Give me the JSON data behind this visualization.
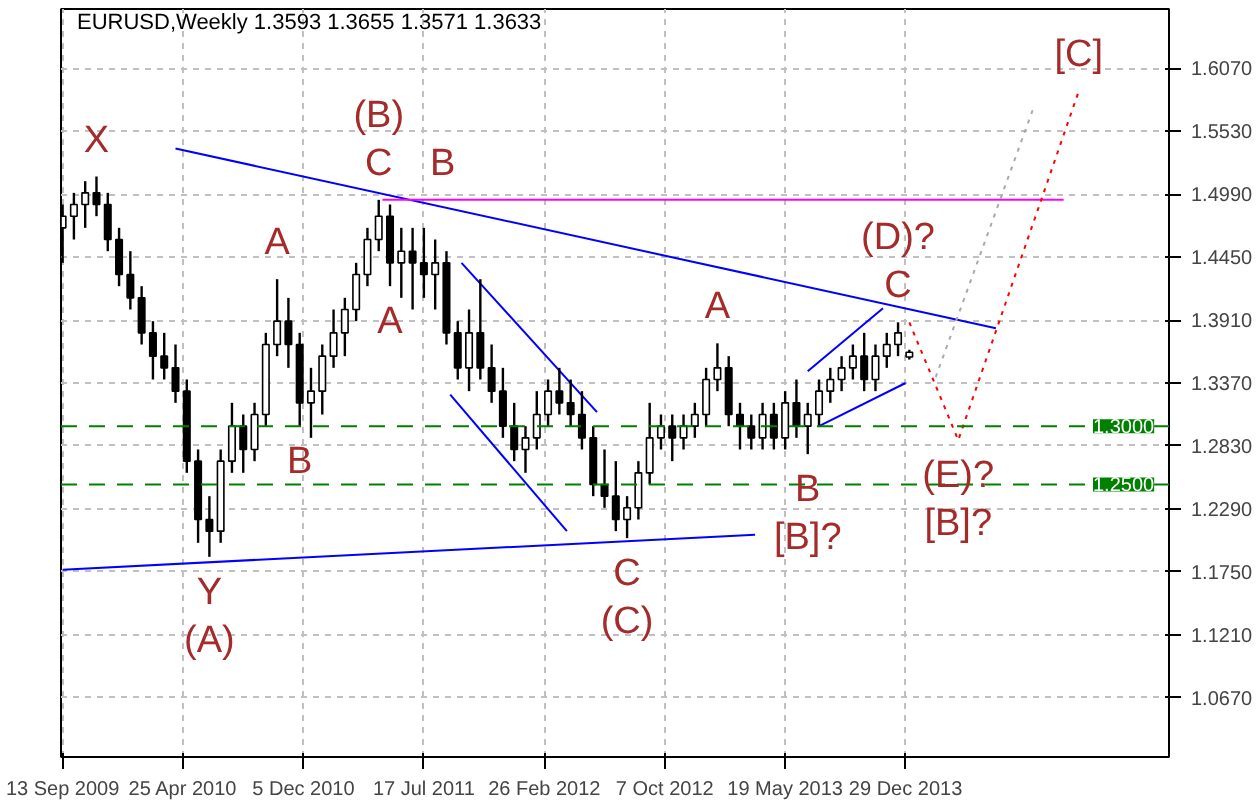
{
  "chart_data": {
    "type": "candlestick",
    "title": "EURUSD,Weekly  1.3593 1.3655 1.3571 1.3633",
    "color": "#000000",
    "x": [
      "2009-09-13",
      "2009-10-04",
      "2009-10-25",
      "2009-11-15",
      "2009-12-06",
      "2009-12-27",
      "2010-01-17",
      "2010-02-07",
      "2010-02-28",
      "2010-03-21",
      "2010-04-11",
      "2010-05-02",
      "2010-05-23",
      "2010-06-13",
      "2010-07-04",
      "2010-07-25",
      "2010-08-15",
      "2010-09-05",
      "2010-09-26",
      "2010-10-17",
      "2010-11-07",
      "2010-11-28",
      "2010-12-19",
      "2011-01-09",
      "2011-01-30",
      "2011-02-20",
      "2011-03-13",
      "2011-04-03",
      "2011-04-24",
      "2011-05-15",
      "2011-06-05",
      "2011-06-26",
      "2011-07-17",
      "2011-08-07",
      "2011-08-28",
      "2011-09-18",
      "2011-10-09",
      "2011-10-30",
      "2011-11-20",
      "2011-12-11",
      "2012-01-01",
      "2012-01-22",
      "2012-02-12",
      "2012-03-04",
      "2012-03-25",
      "2012-04-15",
      "2012-05-06",
      "2012-05-27",
      "2012-06-17",
      "2012-07-08",
      "2012-07-29",
      "2012-08-19",
      "2012-09-09",
      "2012-09-30",
      "2012-10-21",
      "2012-11-11",
      "2012-12-02",
      "2012-12-23",
      "2013-01-13",
      "2013-02-03",
      "2013-02-24",
      "2013-03-17",
      "2013-04-07",
      "2013-04-28",
      "2013-05-19",
      "2013-06-09",
      "2013-06-30",
      "2013-07-21",
      "2013-08-11",
      "2013-09-01",
      "2013-09-22",
      "2013-10-13",
      "2013-11-03",
      "2013-11-24",
      "2013-12-15",
      "2014-01-05"
    ],
    "ohlc": [
      [
        1.47,
        1.49,
        1.44,
        1.48
      ],
      [
        1.48,
        1.5,
        1.46,
        1.49
      ],
      [
        1.49,
        1.51,
        1.47,
        1.5
      ],
      [
        1.5,
        1.514,
        1.48,
        1.49
      ],
      [
        1.49,
        1.5,
        1.45,
        1.46
      ],
      [
        1.46,
        1.47,
        1.42,
        1.43
      ],
      [
        1.43,
        1.45,
        1.4,
        1.41
      ],
      [
        1.41,
        1.42,
        1.37,
        1.38
      ],
      [
        1.38,
        1.39,
        1.34,
        1.36
      ],
      [
        1.36,
        1.38,
        1.34,
        1.35
      ],
      [
        1.35,
        1.37,
        1.32,
        1.33
      ],
      [
        1.33,
        1.34,
        1.26,
        1.27
      ],
      [
        1.27,
        1.28,
        1.2,
        1.22
      ],
      [
        1.22,
        1.24,
        1.188,
        1.21
      ],
      [
        1.21,
        1.28,
        1.2,
        1.27
      ],
      [
        1.27,
        1.32,
        1.26,
        1.3
      ],
      [
        1.3,
        1.31,
        1.26,
        1.28
      ],
      [
        1.28,
        1.32,
        1.27,
        1.31
      ],
      [
        1.31,
        1.38,
        1.3,
        1.37
      ],
      [
        1.37,
        1.426,
        1.36,
        1.39
      ],
      [
        1.39,
        1.41,
        1.35,
        1.37
      ],
      [
        1.37,
        1.38,
        1.3,
        1.32
      ],
      [
        1.32,
        1.35,
        1.29,
        1.33
      ],
      [
        1.33,
        1.37,
        1.31,
        1.36
      ],
      [
        1.36,
        1.4,
        1.35,
        1.38
      ],
      [
        1.38,
        1.41,
        1.36,
        1.4
      ],
      [
        1.4,
        1.44,
        1.39,
        1.43
      ],
      [
        1.43,
        1.47,
        1.42,
        1.46
      ],
      [
        1.46,
        1.494,
        1.45,
        1.48
      ],
      [
        1.48,
        1.49,
        1.42,
        1.44
      ],
      [
        1.44,
        1.47,
        1.41,
        1.45
      ],
      [
        1.45,
        1.47,
        1.4,
        1.44
      ],
      [
        1.44,
        1.47,
        1.41,
        1.43
      ],
      [
        1.43,
        1.46,
        1.4,
        1.44
      ],
      [
        1.44,
        1.45,
        1.37,
        1.38
      ],
      [
        1.38,
        1.39,
        1.34,
        1.35
      ],
      [
        1.35,
        1.4,
        1.33,
        1.38
      ],
      [
        1.38,
        1.426,
        1.34,
        1.35
      ],
      [
        1.35,
        1.37,
        1.32,
        1.33
      ],
      [
        1.33,
        1.35,
        1.29,
        1.3
      ],
      [
        1.3,
        1.32,
        1.27,
        1.28
      ],
      [
        1.28,
        1.3,
        1.26,
        1.29
      ],
      [
        1.29,
        1.33,
        1.28,
        1.31
      ],
      [
        1.31,
        1.34,
        1.3,
        1.33
      ],
      [
        1.33,
        1.35,
        1.31,
        1.32
      ],
      [
        1.32,
        1.34,
        1.3,
        1.31
      ],
      [
        1.31,
        1.33,
        1.28,
        1.29
      ],
      [
        1.29,
        1.3,
        1.24,
        1.25
      ],
      [
        1.25,
        1.28,
        1.23,
        1.24
      ],
      [
        1.24,
        1.27,
        1.21,
        1.22
      ],
      [
        1.22,
        1.24,
        1.204,
        1.23
      ],
      [
        1.23,
        1.27,
        1.22,
        1.26
      ],
      [
        1.26,
        1.32,
        1.25,
        1.29
      ],
      [
        1.29,
        1.31,
        1.28,
        1.3
      ],
      [
        1.3,
        1.31,
        1.27,
        1.29
      ],
      [
        1.29,
        1.31,
        1.28,
        1.3
      ],
      [
        1.3,
        1.32,
        1.29,
        1.31
      ],
      [
        1.31,
        1.35,
        1.3,
        1.34
      ],
      [
        1.34,
        1.371,
        1.33,
        1.35
      ],
      [
        1.35,
        1.36,
        1.3,
        1.31
      ],
      [
        1.31,
        1.32,
        1.28,
        1.3
      ],
      [
        1.3,
        1.31,
        1.28,
        1.29
      ],
      [
        1.29,
        1.32,
        1.28,
        1.31
      ],
      [
        1.31,
        1.32,
        1.28,
        1.29
      ],
      [
        1.29,
        1.33,
        1.28,
        1.32
      ],
      [
        1.32,
        1.34,
        1.29,
        1.3
      ],
      [
        1.3,
        1.32,
        1.276,
        1.31
      ],
      [
        1.31,
        1.34,
        1.3,
        1.33
      ],
      [
        1.33,
        1.35,
        1.32,
        1.34
      ],
      [
        1.34,
        1.36,
        1.33,
        1.35
      ],
      [
        1.35,
        1.37,
        1.34,
        1.36
      ],
      [
        1.36,
        1.38,
        1.33,
        1.34
      ],
      [
        1.34,
        1.37,
        1.33,
        1.36
      ],
      [
        1.36,
        1.38,
        1.35,
        1.37
      ],
      [
        1.37,
        1.389,
        1.36,
        1.38
      ],
      [
        1.3593,
        1.3655,
        1.3571,
        1.3633
      ]
    ],
    "series": [
      {
        "type": "line",
        "color": "#0000ff",
        "line_style": "solid",
        "x": [
          "2010-04-11",
          "2014-06-15"
        ],
        "values": [
          1.538,
          1.384
        ]
      },
      {
        "type": "line",
        "color": "#0000ff",
        "line_style": "solid",
        "x": [
          "2009-09-13",
          "2013-03-24"
        ],
        "values": [
          1.177,
          1.207
        ]
      },
      {
        "type": "line",
        "color": "#0000ff",
        "line_style": "solid",
        "x": [
          "2011-09-25",
          "2012-06-03"
        ],
        "values": [
          1.44,
          1.312
        ]
      },
      {
        "type": "line",
        "color": "#0000ff",
        "line_style": "solid",
        "x": [
          "2011-09-04",
          "2012-04-08"
        ],
        "values": [
          1.327,
          1.21
        ]
      },
      {
        "type": "line",
        "color": "#0000ff",
        "line_style": "solid",
        "x": [
          "2013-06-30",
          "2013-11-17"
        ],
        "values": [
          1.347,
          1.401
        ]
      },
      {
        "type": "line",
        "color": "#0000ff",
        "line_style": "solid",
        "x": [
          "2013-07-21",
          "2013-12-29"
        ],
        "values": [
          1.3,
          1.337
        ]
      },
      {
        "type": "line",
        "color": "#ff00ff",
        "line_style": "solid",
        "x": [
          "2011-05-01",
          "2014-10-19"
        ],
        "values": [
          1.494,
          1.494
        ]
      },
      {
        "type": "line",
        "color": "#ff0000",
        "line_style": "dotted",
        "x": [
          "2014-01-05",
          "2014-04-06",
          "2014-11-16"
        ],
        "values": [
          1.389,
          1.288,
          1.587
        ]
      },
      {
        "type": "line",
        "color": "#a9a9a9",
        "line_style": "dotted",
        "x": [
          "2014-02-23",
          "2014-08-24"
        ],
        "values": [
          1.342,
          1.573
        ]
      }
    ],
    "ref_lines": [
      {
        "axis": "y",
        "value": 1.3,
        "label": "1.3000",
        "color": "#008000",
        "line_style": "dashed"
      },
      {
        "axis": "y",
        "value": 1.25,
        "label": "1.2500",
        "color": "#008000",
        "line_style": "dashed"
      }
    ],
    "annotations": [
      {
        "text": "X",
        "x": "2009-11-15",
        "y": 1.514
      },
      {
        "text": "C",
        "x": "2011-04-24",
        "y": 1.494
      },
      {
        "text": "(B)",
        "x": "2011-04-24",
        "y": 1.494
      },
      {
        "text": "B",
        "x": "2011-08-21",
        "y": 1.494
      },
      {
        "text": "A",
        "x": "2010-10-17",
        "y": 1.426
      },
      {
        "text": "A",
        "x": "2011-05-15",
        "y": 1.42
      },
      {
        "text": "B",
        "x": "2010-11-28",
        "y": 1.3
      },
      {
        "text": "Y",
        "x": "2010-06-13",
        "y": 1.188
      },
      {
        "text": "(A)",
        "x": "2010-06-13",
        "y": 1.188
      },
      {
        "text": "C",
        "x": "2012-07-29",
        "y": 1.204
      },
      {
        "text": "(C)",
        "x": "2012-07-29",
        "y": 1.204
      },
      {
        "text": "A",
        "x": "2013-01-13",
        "y": 1.371
      },
      {
        "text": "B",
        "x": "2013-06-30",
        "y": 1.276
      },
      {
        "text": "C",
        "x": "2013-12-15",
        "y": 1.389
      },
      {
        "text": "(D)?",
        "x": "2013-12-15",
        "y": 1.389
      },
      {
        "text": "[B]?",
        "x": "2013-06-30",
        "y": 1.276
      },
      {
        "text": "(E)?",
        "x": "2014-04-06",
        "y": 1.288
      },
      {
        "text": "[B]?",
        "x": "2014-04-06",
        "y": 1.288
      },
      {
        "text": "[C]",
        "x": "2014-11-16",
        "y": 1.587
      }
    ],
    "xlim": [
      "2009-09-10",
      "2015-05-03"
    ],
    "ylim": [
      1.0164,
      1.6576
    ],
    "xticks": [
      {
        "value": "2009-09-13",
        "label": "13 Sep 2009"
      },
      {
        "value": "2010-04-25",
        "label": "25 Apr 2010"
      },
      {
        "value": "2010-12-05",
        "label": "5 Dec 2010"
      },
      {
        "value": "2011-07-17",
        "label": "17 Jul 2011"
      },
      {
        "value": "2012-02-26",
        "label": "26 Feb 2012"
      },
      {
        "value": "2012-10-07",
        "label": "7 Oct 2012"
      },
      {
        "value": "2013-05-19",
        "label": "19 May 2013"
      },
      {
        "value": "2013-12-29",
        "label": "29 Dec 2013"
      }
    ],
    "yticks": [
      {
        "value": 1.067,
        "label": "1.0670"
      },
      {
        "value": 1.121,
        "label": "1.1210"
      },
      {
        "value": 1.175,
        "label": "1.1750"
      },
      {
        "value": 1.229,
        "label": "1.2290"
      },
      {
        "value": 1.283,
        "label": "1.2830"
      },
      {
        "value": 1.337,
        "label": "1.3370"
      },
      {
        "value": 1.391,
        "label": "1.3910"
      },
      {
        "value": 1.445,
        "label": "1.4450"
      },
      {
        "value": 1.499,
        "label": "1.4990"
      },
      {
        "value": 1.553,
        "label": "1.5530"
      },
      {
        "value": 1.607,
        "label": "1.6070"
      }
    ],
    "grid": true
  }
}
